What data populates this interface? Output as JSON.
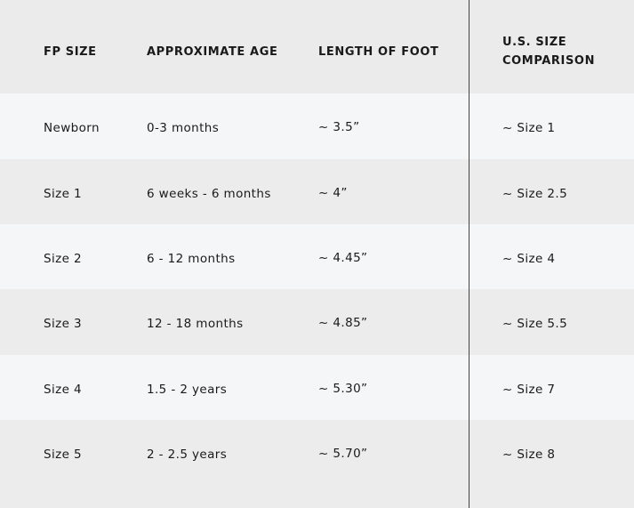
{
  "headers": [
    "FP SIZE",
    "APPROXIMATE AGE",
    "LENGTH OF FOOT",
    "U.S. SIZE\nCOMPARISON"
  ],
  "header_us_line1": "U.S. SIZE",
  "header_us_line2": "COMPARISON",
  "rows": [
    [
      "Newborn",
      "0-3 months",
      "~ 3.5”",
      "~ Size 1"
    ],
    [
      "Size 1",
      "6 weeks - 6 months",
      "~ 4”",
      "~ Size 2.5"
    ],
    [
      "Size 2",
      "6 - 12 months",
      "~ 4.45”",
      "~ Size 4"
    ],
    [
      "Size 3",
      "12 - 18 months",
      "~ 4.85”",
      "~ Size 5.5"
    ],
    [
      "Size 4",
      "1.5 - 2 years",
      "~ 5.30”",
      "~ Size 7"
    ],
    [
      "Size 5",
      "2 - 2.5 years",
      "~ 5.70”",
      "~ Size 8"
    ]
  ],
  "colors": {
    "header_bg": "#ebebeb",
    "row_light": "#f5f6f7",
    "row_dark": "#ececec",
    "divider": "#444444"
  }
}
